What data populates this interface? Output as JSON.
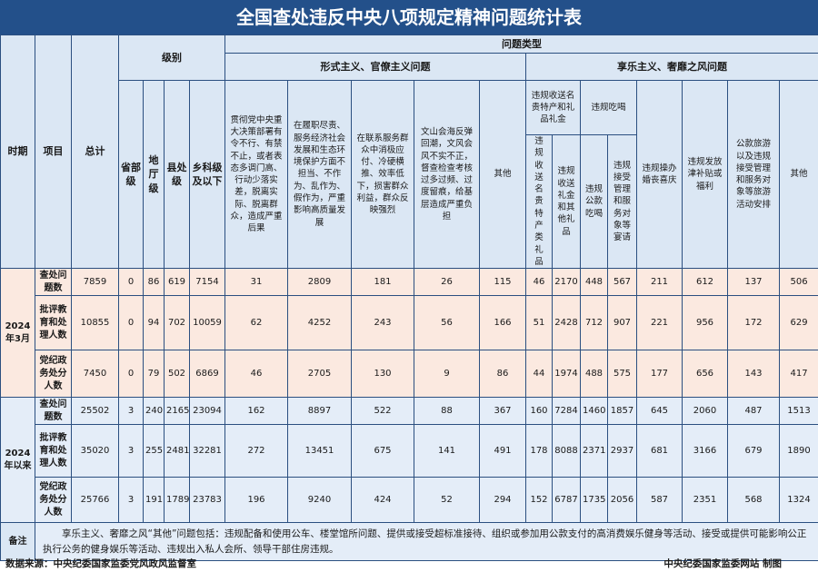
{
  "header": {
    "title": "全国查处违反中央八项规定精神问题统计表"
  },
  "table": {
    "headers": {
      "period": "时期",
      "item": "项目",
      "total": "总计",
      "level": "级别",
      "levels": [
        "省部级",
        "地厅级",
        "县处级",
        "乡科级及以下"
      ],
      "problem_type": "问题类型",
      "formalism": {
        "title": "形式主义、官僚主义问题",
        "columns": [
          "贯彻党中央重大决策部署有令不行、有禁不止，或者表态多调门高、行动少落实差，脱离实际、脱离群众，造成严重后果",
          "在履职尽责、服务经济社会发展和生态环境保护方面不担当、不作为、乱作为、假作为，严重影响高质量发展",
          "在联系服务群众中消极应付、冷硬横推、效率低下，损害群众利益，群众反映强烈",
          "文山会海反弹回潮，文风会风不实不正，督查检查考核过多过频、过度留痕，给基层造成严重负担",
          "其他"
        ]
      },
      "hedonism": {
        "title": "享乐主义、奢靡之风问题",
        "gifts": {
          "title": "违规收送名贵特产和礼品礼金",
          "columns": [
            "违规收送名贵特产类礼品",
            "违规收送礼金和其他礼品"
          ]
        },
        "dining": {
          "title": "违规吃喝",
          "columns": [
            "违规公款吃喝",
            "违规接受管理和服务对象等宴请"
          ]
        },
        "others": [
          "违规操办婚丧喜庆",
          "违规发放津补贴或福利",
          "公款旅游以及违规接受管理和服务对象等旅游活动安排",
          "其他"
        ]
      }
    },
    "groups": [
      {
        "period": "2024年3月",
        "rows": [
          {
            "item": "查处问题数",
            "values": [
              7859,
              0,
              86,
              619,
              7154,
              31,
              2809,
              181,
              26,
              115,
              46,
              2170,
              448,
              567,
              211,
              612,
              137,
              506
            ]
          },
          {
            "item": "批评教育和处理人数",
            "values": [
              10855,
              0,
              94,
              702,
              10059,
              62,
              4252,
              243,
              56,
              166,
              51,
              2428,
              712,
              907,
              221,
              956,
              172,
              629
            ]
          },
          {
            "item": "党纪政务处分人数",
            "values": [
              7450,
              0,
              79,
              502,
              6869,
              46,
              2705,
              130,
              9,
              86,
              44,
              1974,
              488,
              575,
              177,
              656,
              143,
              417
            ]
          }
        ]
      },
      {
        "period": "2024年以来",
        "rows": [
          {
            "item": "查处问题数",
            "values": [
              25502,
              3,
              240,
              2165,
              23094,
              162,
              8897,
              522,
              88,
              367,
              160,
              7284,
              1460,
              1857,
              645,
              2060,
              487,
              1513
            ]
          },
          {
            "item": "批评教育和处理人数",
            "values": [
              35020,
              3,
              255,
              2481,
              32281,
              272,
              13451,
              675,
              141,
              491,
              178,
              8088,
              2371,
              2937,
              681,
              3166,
              679,
              1890
            ]
          },
          {
            "item": "党纪政务处分人数",
            "values": [
              25766,
              3,
              191,
              1789,
              23783,
              196,
              9240,
              424,
              52,
              294,
              152,
              6787,
              1735,
              2056,
              587,
              2351,
              568,
              1324
            ]
          }
        ]
      }
    ]
  },
  "notes": {
    "label": "备注",
    "text": "享乐主义、奢靡之风“其他”问题包括：违规配备和使用公车、楼堂馆所问题、提供或接受超标准接待、组织或参加用公款支付的高消费娱乐健身等活动、接受或提供可能影响公正执行公务的健身娱乐等活动、违规出入私人会所、领导干部住房违规。"
  },
  "footer": {
    "source": "数据来源：中央纪委国家监委党风政风监督室",
    "credit": "中央纪委国家监委网站 制图"
  }
}
